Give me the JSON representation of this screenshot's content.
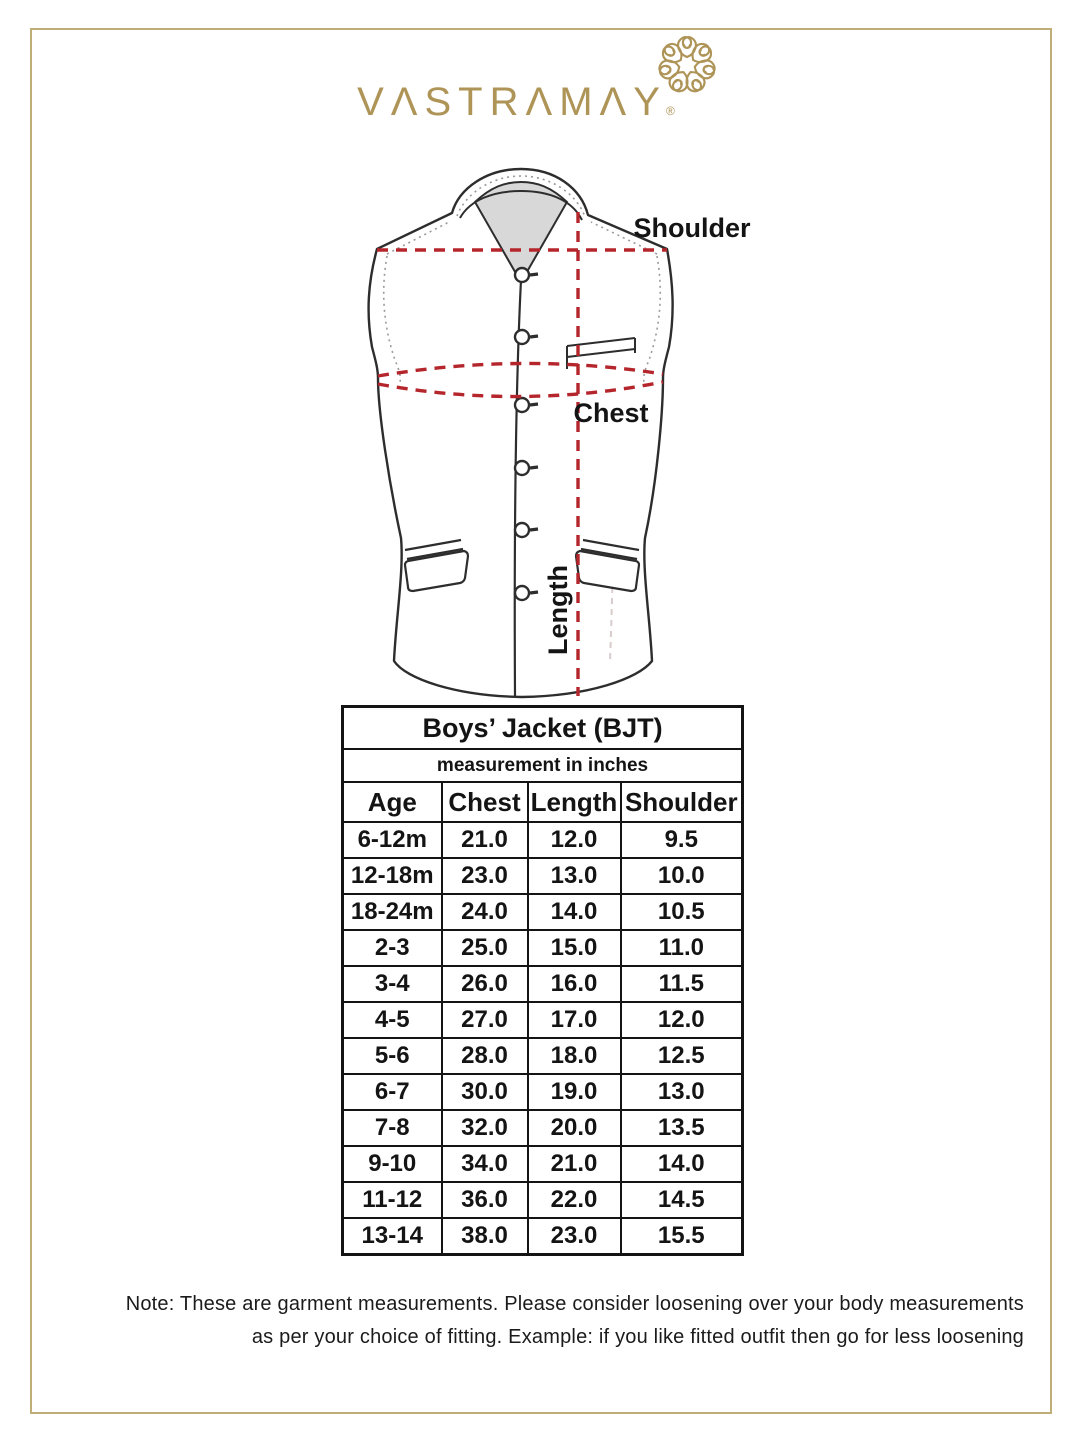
{
  "brand": {
    "name": "VASTRAMAY",
    "display": "VΛSTRΛMΛY",
    "registered_mark": "®"
  },
  "diagram": {
    "labels": {
      "shoulder": "Shoulder",
      "chest": "Chest",
      "length": "Length"
    }
  },
  "size_chart": {
    "title": "Boys’ Jacket (BJT)",
    "unit_note": "measurement in inches",
    "columns": [
      "Age",
      "Chest",
      "Length",
      "Shoulder"
    ],
    "rows": [
      [
        "6-12m",
        "21.0",
        "12.0",
        "9.5"
      ],
      [
        "12-18m",
        "23.0",
        "13.0",
        "10.0"
      ],
      [
        "18-24m",
        "24.0",
        "14.0",
        "10.5"
      ],
      [
        "2-3",
        "25.0",
        "15.0",
        "11.0"
      ],
      [
        "3-4",
        "26.0",
        "16.0",
        "11.5"
      ],
      [
        "4-5",
        "27.0",
        "17.0",
        "12.0"
      ],
      [
        "5-6",
        "28.0",
        "18.0",
        "12.5"
      ],
      [
        "6-7",
        "30.0",
        "19.0",
        "13.0"
      ],
      [
        "7-8",
        "32.0",
        "20.0",
        "13.5"
      ],
      [
        "9-10",
        "34.0",
        "21.0",
        "14.0"
      ],
      [
        "11-12",
        "36.0",
        "22.0",
        "14.5"
      ],
      [
        "13-14",
        "38.0",
        "23.0",
        "15.5"
      ]
    ]
  },
  "note": {
    "line1": "Note: These are garment measurements. Please consider loosening over your body measurements",
    "line2": "as per your choice of fitting. Example: if you like fitted outfit then go for less loosening"
  },
  "colors": {
    "brand_gold": "#ae9457",
    "frame_gold": "#bfae78",
    "measure_red": "#b5262c",
    "sketch_line": "#2d2d2d",
    "collar_gray": "#d8d8d8",
    "table_ink": "#141414"
  }
}
